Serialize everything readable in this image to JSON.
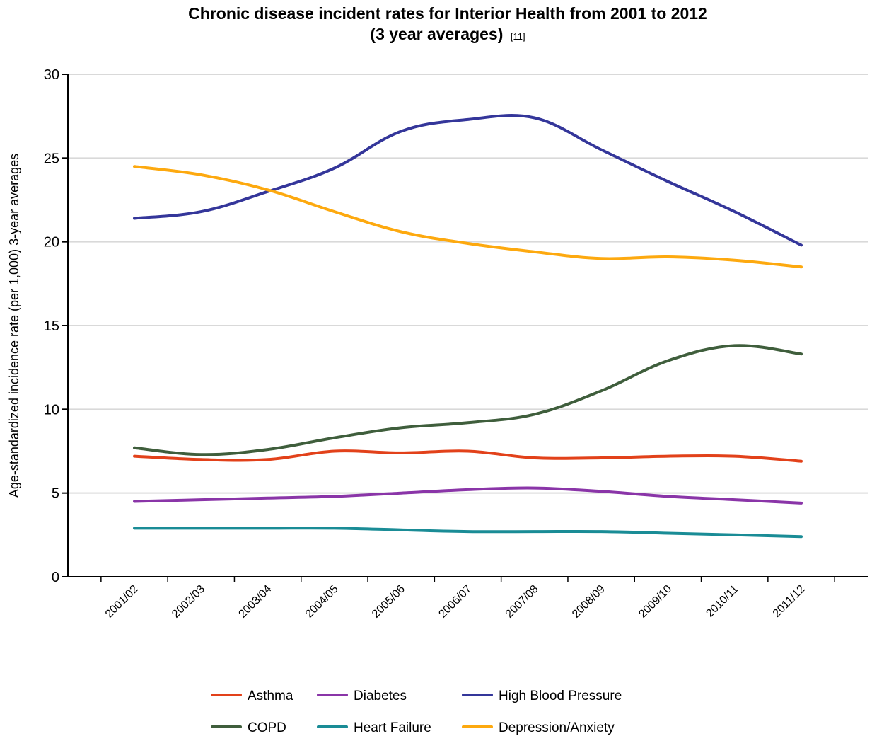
{
  "chart_data": {
    "type": "line",
    "title_line1": "Chronic disease incident rates for Interior Health from 2001 to 2012",
    "title_line2": "(3 year averages)",
    "title_reference": "[11]",
    "ylabel": "Age-standardized incidence rate  (per 1,000)  3-year averages",
    "xlabel": "",
    "ylim": [
      0,
      30
    ],
    "yticks": [
      "0",
      "5",
      "10",
      "15",
      "20",
      "25",
      "30"
    ],
    "categories": [
      "2001/02",
      "2002/03",
      "2003/04",
      "2004/05",
      "2005/06",
      "2006/07",
      "2007/08",
      "2008/09",
      "2009/10",
      "2010/11",
      "2011/12"
    ],
    "grid": true,
    "legend_position": "bottom",
    "series": [
      {
        "name": "Asthma",
        "color": "#e2411a",
        "values": [
          7.2,
          7.0,
          7.0,
          7.5,
          7.4,
          7.5,
          7.1,
          7.1,
          7.2,
          7.2,
          6.9
        ]
      },
      {
        "name": "Diabetes",
        "color": "#8a35a8",
        "values": [
          4.5,
          4.6,
          4.7,
          4.8,
          5.0,
          5.2,
          5.3,
          5.1,
          4.8,
          4.6,
          4.4
        ]
      },
      {
        "name": "High Blood Pressure",
        "color": "#34369a",
        "values": [
          21.4,
          21.8,
          23.0,
          24.4,
          26.6,
          27.3,
          27.4,
          25.5,
          23.6,
          21.8,
          19.8
        ]
      },
      {
        "name": "COPD",
        "color": "#3f5e3c",
        "values": [
          7.7,
          7.3,
          7.6,
          8.3,
          8.9,
          9.2,
          9.7,
          11.1,
          12.9,
          13.8,
          13.3
        ]
      },
      {
        "name": "Heart Failure",
        "color": "#1a8c96",
        "values": [
          2.9,
          2.9,
          2.9,
          2.9,
          2.8,
          2.7,
          2.7,
          2.7,
          2.6,
          2.5,
          2.4
        ]
      },
      {
        "name": "Depression/Anxiety",
        "color": "#fda90f",
        "values": [
          24.5,
          24.0,
          23.1,
          21.8,
          20.6,
          19.9,
          19.4,
          19.0,
          19.1,
          18.9,
          18.5
        ]
      }
    ]
  }
}
